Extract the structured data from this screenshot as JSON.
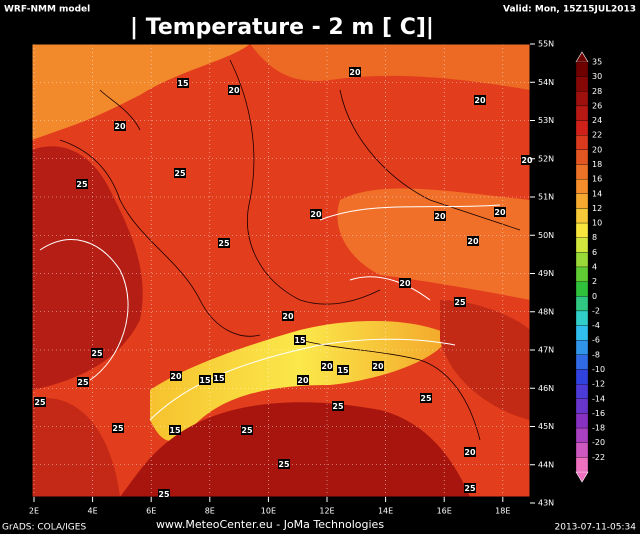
{
  "header": {
    "model": "WRF-NMM model",
    "title": "| Temperature - 2 m [   C]|",
    "valid": "Valid: Mon, 15Z15JUL2013"
  },
  "map": {
    "lat_labels": [
      "55N",
      "54N",
      "53N",
      "52N",
      "51N",
      "50N",
      "49N",
      "48N",
      "47N",
      "46N",
      "45N",
      "44N",
      "43N"
    ],
    "lon_labels": [
      "2E",
      "4E",
      "6E",
      "8E",
      "10E",
      "12E",
      "14E",
      "16E",
      "18E"
    ],
    "contour_labels": [
      "15",
      "20",
      "20",
      "20",
      "20",
      "25",
      "25",
      "20",
      "20",
      "20",
      "20",
      "20",
      "25",
      "20",
      "25",
      "20",
      "15",
      "25",
      "20",
      "20",
      "20",
      "15",
      "15",
      "15",
      "25",
      "20",
      "25",
      "25",
      "25",
      "15",
      "25",
      "25",
      "20",
      "25",
      "25",
      "25"
    ]
  },
  "colorbar": {
    "labels": [
      "35",
      "30",
      "28",
      "26",
      "24",
      "22",
      "20",
      "18",
      "16",
      "14",
      "12",
      "10",
      "8",
      "6",
      "4",
      "2",
      "0",
      "-2",
      "-4",
      "-6",
      "-8",
      "-10",
      "-12",
      "-14",
      "-16",
      "-18",
      "-20",
      "-22"
    ]
  },
  "footer": {
    "software": "GrADS: COLA/IGES",
    "credit": "www.MeteoCenter.eu  -  JoMa Technologies",
    "timestamp": "2013-07-11-05:34"
  }
}
